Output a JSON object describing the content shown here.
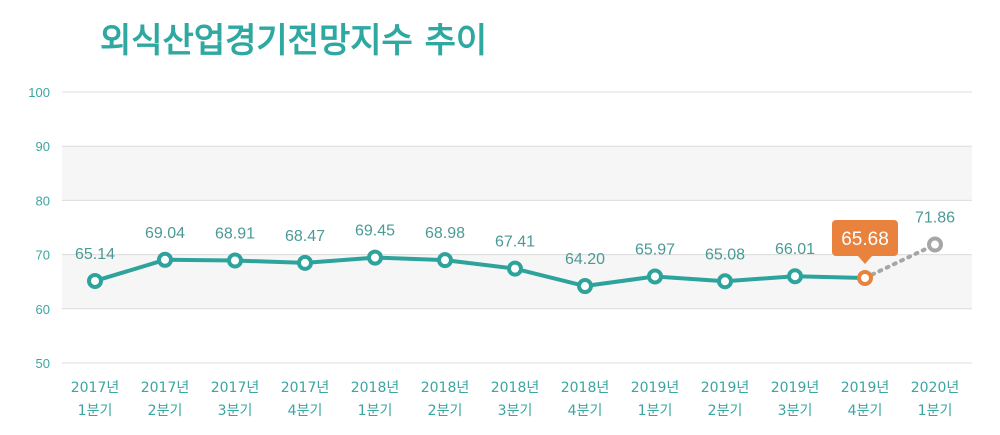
{
  "chart_data": {
    "type": "line",
    "title": "외식산업경기전망지수 추이",
    "xlabel": "",
    "ylabel": "",
    "ylim": [
      50,
      100
    ],
    "yticks": [
      50,
      60,
      70,
      80,
      90,
      100
    ],
    "grid": true,
    "categories": [
      [
        "2017년",
        "1분기"
      ],
      [
        "2017년",
        "2분기"
      ],
      [
        "2017년",
        "3분기"
      ],
      [
        "2017년",
        "4분기"
      ],
      [
        "2018년",
        "1분기"
      ],
      [
        "2018년",
        "2분기"
      ],
      [
        "2018년",
        "3분기"
      ],
      [
        "2018년",
        "4분기"
      ],
      [
        "2019년",
        "1분기"
      ],
      [
        "2019년",
        "2분기"
      ],
      [
        "2019년",
        "3분기"
      ],
      [
        "2019년",
        "4분기"
      ],
      [
        "2020년",
        "1분기"
      ]
    ],
    "series": [
      {
        "values": [
          65.14,
          69.04,
          68.91,
          68.47,
          69.45,
          68.98,
          67.41,
          64.2,
          65.97,
          65.08,
          66.01,
          65.68,
          71.86
        ],
        "labels": [
          "65.14",
          "69.04",
          "68.91",
          "68.47",
          "69.45",
          "68.98",
          "67.41",
          "64.20",
          "65.97",
          "65.08",
          "66.01",
          "65.68",
          "71.86"
        ],
        "highlight_index": 11,
        "forecast_index": 12
      }
    ],
    "colors": {
      "title": "#2fa8a2",
      "line": "#2ea39c",
      "marker_fill": "#ffffff",
      "highlight": "#e8823c",
      "forecast": "#a6a6a6",
      "label": "#4a9a96",
      "grid": "#dcdcdc",
      "plot_band": "#f6f6f6",
      "axis_text": "#3aa6a0"
    }
  }
}
